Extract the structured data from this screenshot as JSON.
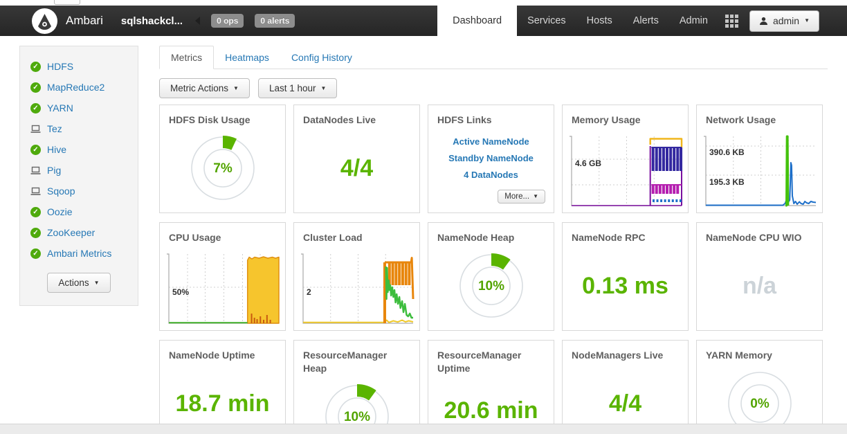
{
  "navbar": {
    "brand": "Ambari",
    "cluster_name": "sqlshackcl...",
    "ops_badge": "0 ops",
    "alerts_badge": "0 alerts",
    "items": [
      {
        "label": "Dashboard",
        "active": true
      },
      {
        "label": "Services",
        "active": false
      },
      {
        "label": "Hosts",
        "active": false
      },
      {
        "label": "Alerts",
        "active": false
      },
      {
        "label": "Admin",
        "active": false
      }
    ],
    "user_label": "admin"
  },
  "sidebar": {
    "items": [
      {
        "label": "HDFS",
        "status": "ok"
      },
      {
        "label": "MapReduce2",
        "status": "ok"
      },
      {
        "label": "YARN",
        "status": "ok"
      },
      {
        "label": "Tez",
        "status": "client"
      },
      {
        "label": "Hive",
        "status": "ok"
      },
      {
        "label": "Pig",
        "status": "client"
      },
      {
        "label": "Sqoop",
        "status": "client"
      },
      {
        "label": "Oozie",
        "status": "ok"
      },
      {
        "label": "ZooKeeper",
        "status": "ok"
      },
      {
        "label": "Ambari Metrics",
        "status": "ok"
      }
    ],
    "actions_label": "Actions"
  },
  "tabs": [
    {
      "label": "Metrics",
      "active": true
    },
    {
      "label": "Heatmaps",
      "active": false
    },
    {
      "label": "Config History",
      "active": false
    }
  ],
  "toolbar": {
    "metric_actions_label": "Metric Actions",
    "time_range_label": "Last 1 hour"
  },
  "colors": {
    "ok_green": "#5ab400",
    "link_blue": "#2678b5",
    "na_gray": "#ccd3d8"
  },
  "widgets": {
    "hdfs_disk_usage": {
      "title": "HDFS Disk Usage",
      "percent": 7,
      "display": "7%"
    },
    "datanodes_live": {
      "title": "DataNodes Live",
      "value": "4/4"
    },
    "hdfs_links": {
      "title": "HDFS Links",
      "links": [
        "Active NameNode",
        "Standby NameNode",
        "4 DataNodes"
      ],
      "more_label": "More..."
    },
    "memory_usage": {
      "title": "Memory Usage"
    },
    "network_usage": {
      "title": "Network Usage"
    },
    "cpu_usage": {
      "title": "CPU Usage"
    },
    "cluster_load": {
      "title": "Cluster Load"
    },
    "namenode_heap": {
      "title": "NameNode Heap",
      "percent": 10,
      "display": "10%"
    },
    "namenode_rpc": {
      "title": "NameNode RPC",
      "value": "0.13 ms"
    },
    "namenode_cpu_wio": {
      "title": "NameNode CPU WIO",
      "value": "n/a"
    },
    "namenode_uptime": {
      "title": "NameNode Uptime",
      "value": "18.7 min"
    },
    "resourcemanager_heap": {
      "title": "ResourceManager Heap",
      "percent": 10,
      "display": "10%"
    },
    "resourcemanager_uptime": {
      "title": "ResourceManager Uptime",
      "value": "20.6 min"
    },
    "nodemanagers_live": {
      "title": "NodeManagers Live",
      "value": "4/4"
    },
    "yarn_memory": {
      "title": "YARN Memory",
      "percent": 0,
      "display": "0%"
    }
  },
  "chart_data": {
    "memory_usage": {
      "type": "area",
      "title": "Memory Usage",
      "ylabels": [
        {
          "text": "4.6 GB",
          "y": 0.6
        }
      ],
      "grid_h": [
        0.67,
        0.3
      ],
      "grid_v": [
        0.25,
        0.5,
        0.75
      ],
      "series": [
        {
          "color": "#7a0f9e",
          "type": "line",
          "w": 1.5,
          "pts": [
            [
              0,
              0
            ],
            [
              1,
              0
            ]
          ]
        },
        {
          "color": "#7a0f9e",
          "type": "vbars",
          "w": 2,
          "bars": [
            [
              0.715,
              0,
              0.86
            ],
            [
              1.0,
              0,
              0.8
            ]
          ]
        },
        {
          "color": "#f0b61c",
          "type": "line",
          "w": 2.5,
          "pts": [
            [
              0.715,
              0.88
            ],
            [
              0.715,
              0.965
            ],
            [
              1,
              0.965
            ],
            [
              1,
              0.84
            ]
          ]
        },
        {
          "color": "#3328a0",
          "type": "line",
          "w": 2,
          "pts": [
            [
              0.725,
              0.84
            ],
            [
              1,
              0.84
            ]
          ]
        },
        {
          "color": "#3328a0",
          "type": "vbars",
          "w": 4,
          "bars": [
            [
              0.74,
              0.5,
              0.84
            ],
            [
              0.772,
              0.5,
              0.84
            ],
            [
              0.804,
              0.5,
              0.84
            ],
            [
              0.836,
              0.5,
              0.84
            ],
            [
              0.868,
              0.5,
              0.84
            ],
            [
              0.9,
              0.5,
              0.84
            ],
            [
              0.932,
              0.5,
              0.84
            ],
            [
              0.964,
              0.5,
              0.84
            ],
            [
              0.994,
              0.5,
              0.84
            ]
          ]
        },
        {
          "color": "#b51fb0",
          "type": "line",
          "w": 2,
          "pts": [
            [
              0.725,
              0.3
            ],
            [
              1,
              0.3
            ]
          ]
        },
        {
          "color": "#b51fb0",
          "type": "vbars",
          "w": 4,
          "bars": [
            [
              0.74,
              0.17,
              0.3
            ],
            [
              0.772,
              0.17,
              0.3
            ],
            [
              0.804,
              0.17,
              0.3
            ],
            [
              0.836,
              0.17,
              0.3
            ],
            [
              0.868,
              0.17,
              0.3
            ],
            [
              0.9,
              0.17,
              0.3
            ],
            [
              0.932,
              0.17,
              0.3
            ],
            [
              0.964,
              0.17,
              0.3
            ]
          ]
        },
        {
          "color": "#1d6fc9",
          "type": "vbars",
          "w": 3,
          "bars": [
            [
              0.745,
              0.05,
              0.09
            ],
            [
              0.78,
              0.05,
              0.09
            ],
            [
              0.815,
              0.05,
              0.09
            ],
            [
              0.85,
              0.05,
              0.09
            ],
            [
              0.885,
              0.05,
              0.09
            ],
            [
              0.92,
              0.05,
              0.09
            ],
            [
              0.955,
              0.05,
              0.09
            ],
            [
              0.99,
              0.05,
              0.09
            ]
          ]
        }
      ]
    },
    "network_usage": {
      "type": "line",
      "title": "Network Usage",
      "ylabels": [
        {
          "text": "390.6 KB",
          "y": 0.76
        },
        {
          "text": "195.3 KB",
          "y": 0.33
        }
      ],
      "grid_h": [
        0.86,
        0.44
      ],
      "grid_v": [
        0.25,
        0.5,
        0.75
      ],
      "series": [
        {
          "color": "#1d6fc9",
          "type": "line",
          "w": 2,
          "pts": [
            [
              0,
              0.005
            ],
            [
              0.7,
              0.005
            ],
            [
              0.72,
              0.03
            ],
            [
              0.735,
              0.09
            ],
            [
              0.75,
              0.05
            ],
            [
              0.762,
              0.08
            ],
            [
              0.768,
              0.34
            ],
            [
              0.773,
              0.62
            ],
            [
              0.779,
              0.58
            ],
            [
              0.786,
              0.14
            ],
            [
              0.8,
              0.03
            ],
            [
              0.815,
              0.06
            ],
            [
              0.83,
              0.02
            ],
            [
              0.85,
              0.055
            ],
            [
              0.865,
              0.03
            ],
            [
              0.885,
              0.02
            ],
            [
              0.9,
              0.06
            ],
            [
              0.915,
              0.04
            ],
            [
              0.935,
              0.03
            ],
            [
              0.955,
              0.06
            ],
            [
              0.975,
              0.05
            ],
            [
              1,
              0.045
            ]
          ]
        },
        {
          "color": "#44c20c",
          "type": "line",
          "w": 3,
          "pts": [
            [
              0.725,
              0.0
            ],
            [
              0.733,
              0.0
            ],
            [
              0.737,
              1.0
            ],
            [
              0.743,
              1.0
            ],
            [
              0.748,
              0.0
            ]
          ]
        }
      ]
    },
    "cpu_usage": {
      "type": "area",
      "title": "CPU Usage",
      "ylabels": [
        {
          "text": "50%",
          "y": 0.44
        }
      ],
      "grid_h": [
        0.52
      ],
      "grid_v": [
        0.17,
        0.33,
        0.5,
        0.67,
        0.83
      ],
      "series": [
        {
          "color": "#e09010",
          "fill": "#f6c52d",
          "type": "area",
          "w": 1.5,
          "pts": [
            [
              0.715,
              0
            ],
            [
              0.715,
              0.91
            ],
            [
              0.73,
              0.955
            ],
            [
              0.755,
              0.93
            ],
            [
              0.78,
              0.955
            ],
            [
              0.82,
              0.94
            ],
            [
              0.86,
              0.96
            ],
            [
              0.9,
              0.94
            ],
            [
              0.94,
              0.955
            ],
            [
              0.97,
              0.94
            ],
            [
              1,
              0.955
            ],
            [
              1,
              0
            ]
          ]
        },
        {
          "color": "#c85a10",
          "type": "vbars",
          "w": 2,
          "bars": [
            [
              0.752,
              0,
              0.14
            ],
            [
              0.778,
              0,
              0.08
            ],
            [
              0.802,
              0,
              0.06
            ],
            [
              0.832,
              0,
              0.1
            ],
            [
              0.862,
              0,
              0.05
            ],
            [
              0.892,
              0,
              0.12
            ],
            [
              0.922,
              0,
              0.05
            ]
          ]
        },
        {
          "color": "#3fae28",
          "type": "line",
          "w": 2,
          "pts": [
            [
              0,
              0.008
            ],
            [
              0.715,
              0.008
            ]
          ]
        }
      ]
    },
    "cluster_load": {
      "type": "line",
      "title": "Cluster Load",
      "ylabels": [
        {
          "text": "2",
          "y": 0.44
        }
      ],
      "grid_h": [
        0.52
      ],
      "grid_v": [
        0.25,
        0.5,
        0.75
      ],
      "series": [
        {
          "color": "#f0c929",
          "type": "line",
          "w": 2,
          "pts": [
            [
              0,
              0.012
            ],
            [
              0.74,
              0.012
            ],
            [
              0.76,
              0.045
            ],
            [
              0.78,
              0.012
            ],
            [
              0.82,
              0.035
            ],
            [
              0.86,
              0.018
            ],
            [
              0.9,
              0.045
            ],
            [
              0.93,
              0.02
            ],
            [
              0.96,
              0.035
            ],
            [
              1,
              0.02
            ]
          ]
        },
        {
          "color": "#e8860c",
          "type": "vbars",
          "w": 4,
          "bars": [
            [
              0.742,
              0,
              0.88
            ],
            [
              0.785,
              0.55,
              0.88
            ],
            [
              0.815,
              0.55,
              0.88
            ],
            [
              0.845,
              0.55,
              0.88
            ],
            [
              0.875,
              0.55,
              0.88
            ],
            [
              0.905,
              0.55,
              0.88
            ],
            [
              0.935,
              0.55,
              0.88
            ],
            [
              0.965,
              0.55,
              0.88
            ]
          ]
        },
        {
          "color": "#e8860c",
          "type": "line",
          "w": 3,
          "pts": [
            [
              0.742,
              0.88
            ],
            [
              0.982,
              0.88
            ],
            [
              0.988,
              0.945
            ],
            [
              1,
              0.35
            ]
          ]
        },
        {
          "color": "#3dbd3d",
          "type": "line",
          "w": 2.5,
          "pts": [
            [
              0.752,
              0.82
            ],
            [
              0.758,
              0.35
            ],
            [
              0.763,
              0.8
            ],
            [
              0.77,
              0.45
            ],
            [
              0.778,
              0.62
            ],
            [
              0.785,
              0.48
            ],
            [
              0.792,
              0.55
            ],
            [
              0.8,
              0.4
            ],
            [
              0.81,
              0.52
            ],
            [
              0.82,
              0.38
            ],
            [
              0.83,
              0.48
            ],
            [
              0.84,
              0.3
            ],
            [
              0.85,
              0.42
            ],
            [
              0.862,
              0.28
            ],
            [
              0.875,
              0.38
            ],
            [
              0.885,
              0.22
            ],
            [
              0.9,
              0.32
            ],
            [
              0.912,
              0.16
            ],
            [
              0.925,
              0.28
            ],
            [
              0.94,
              0.12
            ],
            [
              0.955,
              0.1
            ],
            [
              0.97,
              0.14
            ],
            [
              0.985,
              0.08
            ],
            [
              1,
              0.08
            ]
          ]
        }
      ]
    }
  }
}
